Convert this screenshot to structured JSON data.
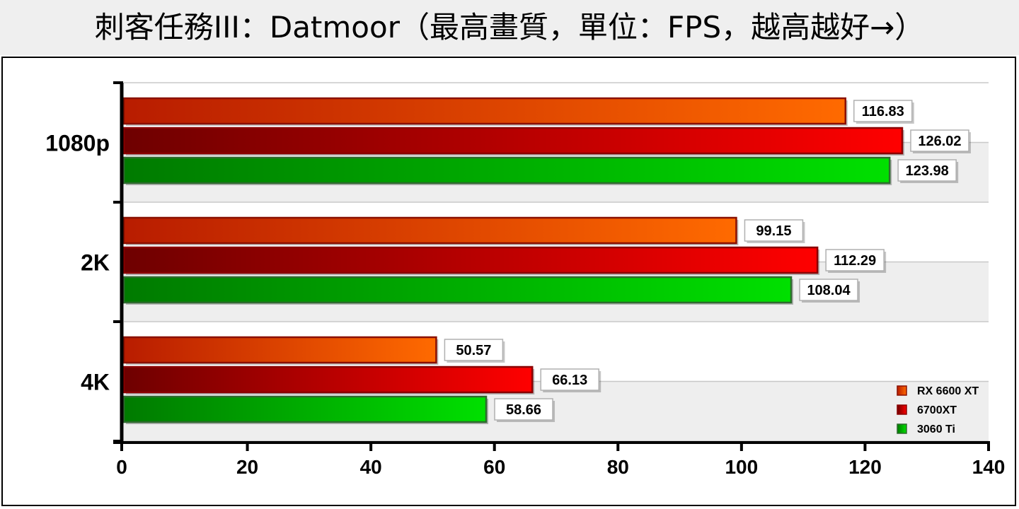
{
  "chart_data": {
    "type": "bar",
    "orientation": "horizontal",
    "title": "刺客任務III：Datmoor（最高畫質，單位：FPS，越高越好→）",
    "categories": [
      "1080p",
      "2K",
      "4K"
    ],
    "series": [
      {
        "name": "RX 6600 XT",
        "values": [
          116.83,
          99.15,
          50.57
        ],
        "labels": [
          "116.83",
          "99.15",
          "50.57"
        ],
        "color_light": "#ff6a00",
        "color_dark": "#b81c00",
        "border": "#8a1000"
      },
      {
        "name": "6700XT",
        "values": [
          126.02,
          112.29,
          66.13
        ],
        "labels": [
          "126.02",
          "112.29",
          "66.13"
        ],
        "color_light": "#ff0000",
        "color_dark": "#6e0000",
        "border": "#8a0000"
      },
      {
        "name": "3060 Ti",
        "values": [
          123.98,
          108.04,
          58.66
        ],
        "labels": [
          "123.98",
          "108.04",
          "58.66"
        ],
        "color_light": "#00e000",
        "color_dark": "#007a00",
        "border": "#2f6a2f"
      }
    ],
    "xlim": [
      0,
      140
    ],
    "xticks": [
      "0",
      "20",
      "40",
      "60",
      "80",
      "100",
      "120",
      "140"
    ],
    "grid": true,
    "legend": "bottom-right"
  }
}
